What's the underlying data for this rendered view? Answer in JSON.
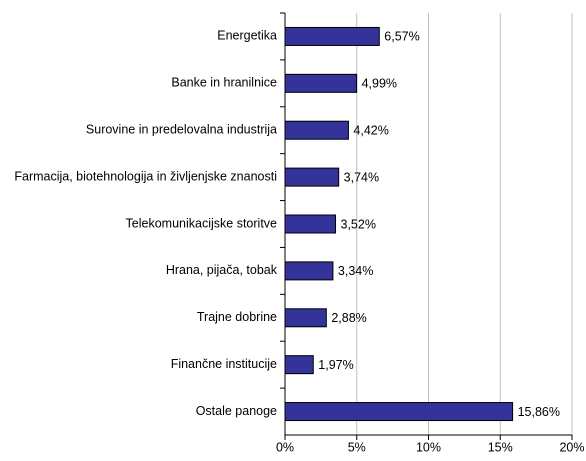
{
  "chart_data": {
    "type": "bar",
    "orientation": "horizontal",
    "categories": [
      "Energetika",
      "Banke in hranilnice",
      "Surovine in predelovalna industrija",
      "Farmacija, biotehnologija in življenjske znanosti",
      "Telekomunikacijske storitve",
      "Hrana, pijača, tobak",
      "Trajne dobrine",
      "Finančne institucije",
      "Ostale panoge"
    ],
    "values": [
      6.57,
      4.99,
      4.42,
      3.74,
      3.52,
      3.34,
      2.88,
      1.97,
      15.86
    ],
    "value_labels": [
      "6,57%",
      "4,99%",
      "4,42%",
      "3,74%",
      "3,52%",
      "3,34%",
      "2,88%",
      "1,97%",
      "15,86%"
    ],
    "color": "#333399",
    "xlim": [
      0,
      20
    ],
    "xticks": [
      {
        "value": 0,
        "label": "0%"
      },
      {
        "value": 5,
        "label": "5%"
      },
      {
        "value": 10,
        "label": "10%"
      },
      {
        "value": 15,
        "label": "15%"
      },
      {
        "value": 20,
        "label": "20%"
      }
    ],
    "grid": true
  }
}
